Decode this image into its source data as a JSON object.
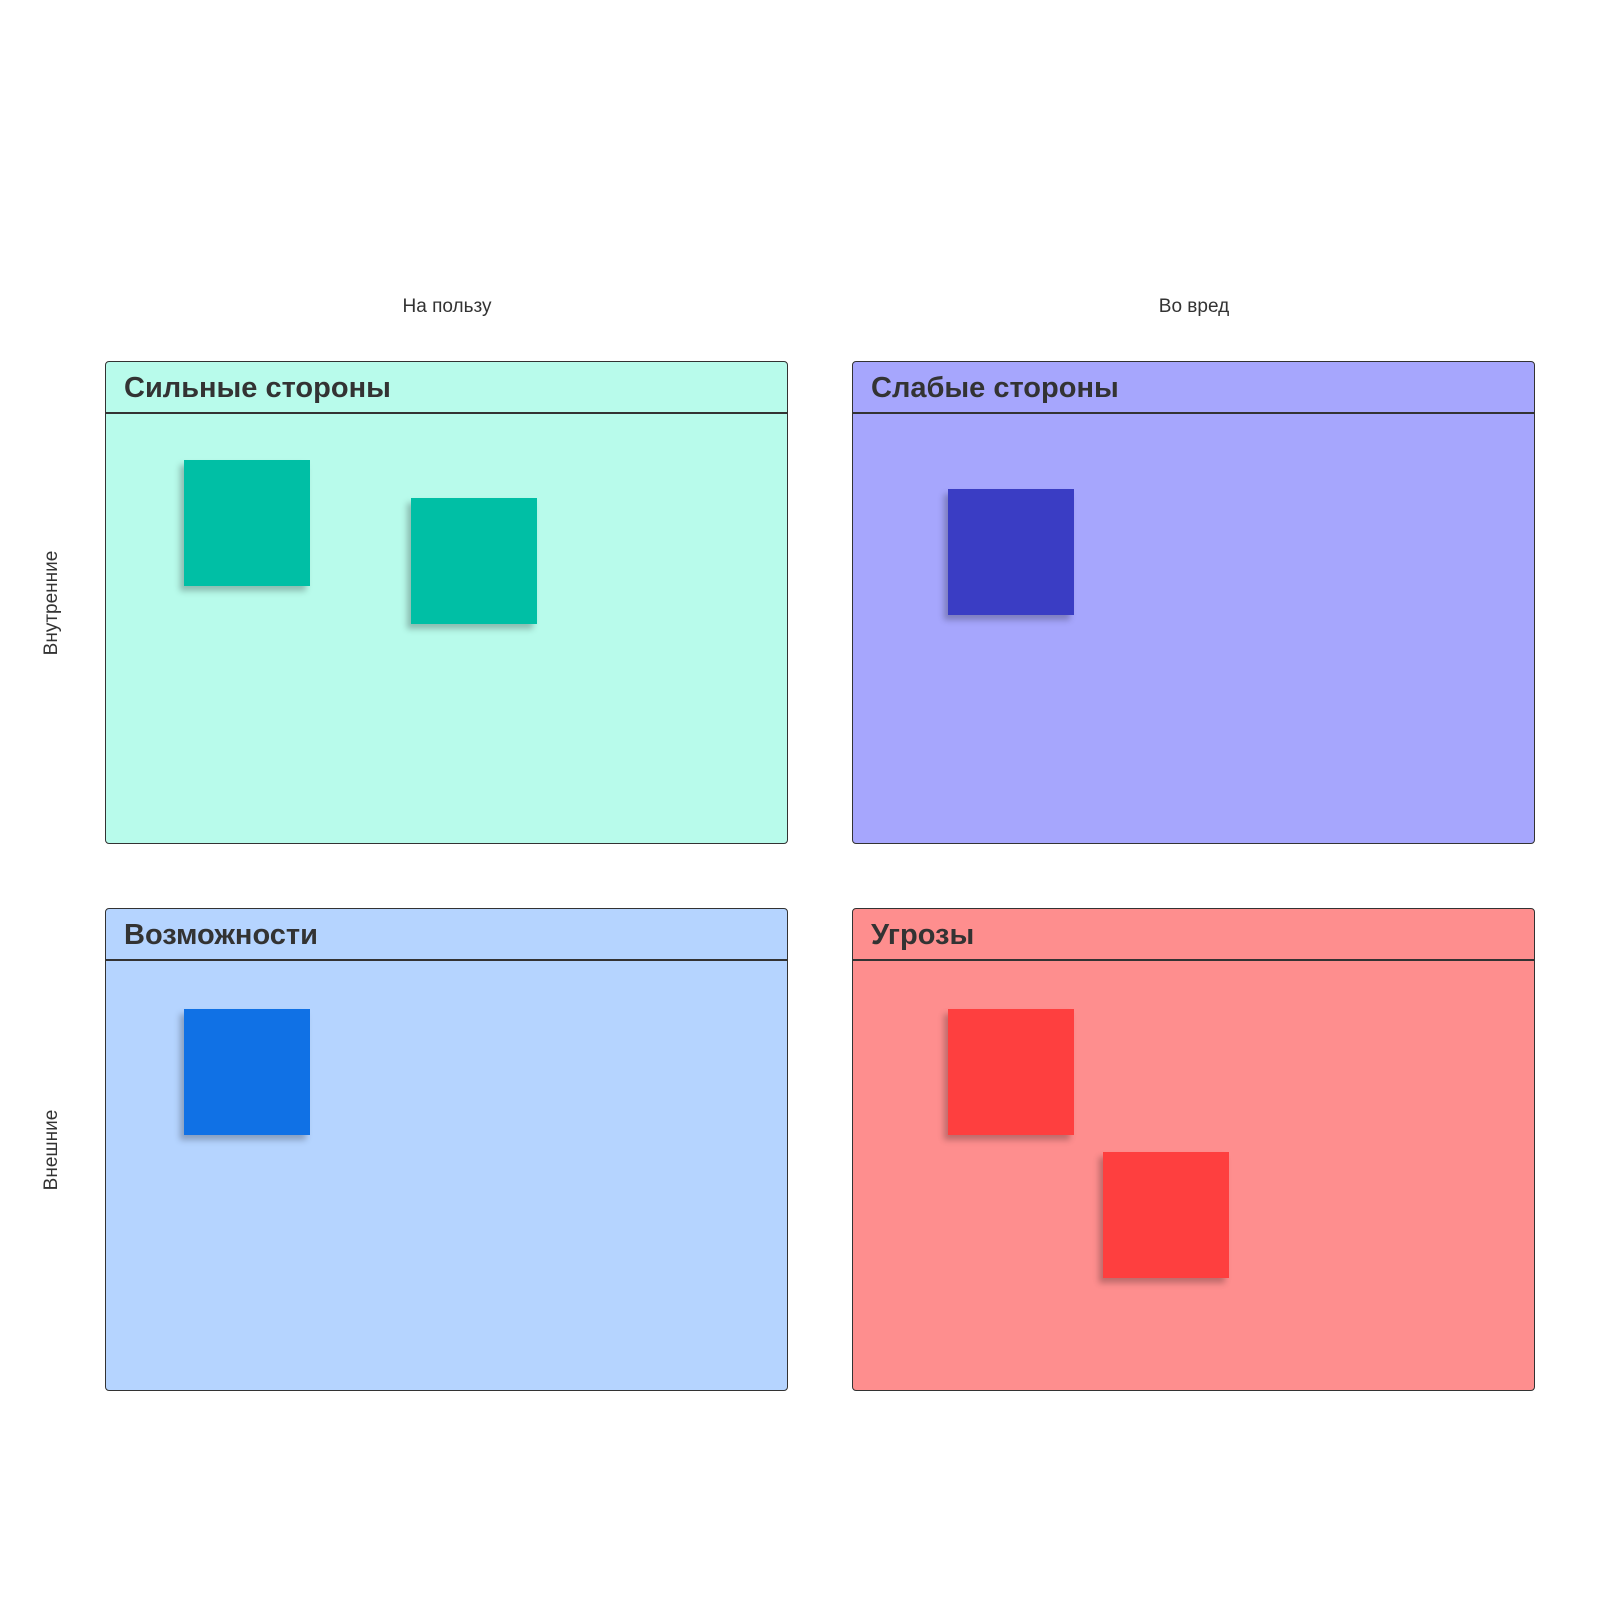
{
  "columns": {
    "favorable": "На пользу",
    "harmful": "Во вред"
  },
  "rows": {
    "internal": "Внутренние",
    "external": "Внешние"
  },
  "quadrants": {
    "strengths": {
      "title": "Сильные стороны",
      "bg": "#b8fbeb",
      "note_color": "#00bfa5",
      "notes": 2
    },
    "weaknesses": {
      "title": "Слабые стороны",
      "bg": "#a6a6fd",
      "note_color": "#3a3dc4",
      "notes": 1
    },
    "opportunities": {
      "title": "Возможности",
      "bg": "#b5d4ff",
      "note_color": "#1071e5",
      "notes": 1
    },
    "threats": {
      "title": "Угрозы",
      "bg": "#fe8e8e",
      "note_color": "#fe3f3f",
      "notes": 2
    }
  }
}
